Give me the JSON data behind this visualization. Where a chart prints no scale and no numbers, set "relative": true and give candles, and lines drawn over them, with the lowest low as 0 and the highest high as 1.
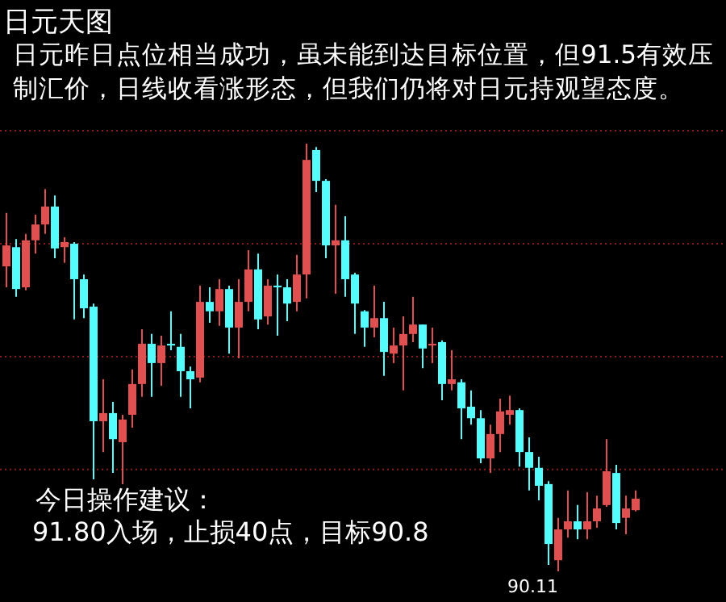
{
  "chart_data": {
    "type": "candlestick",
    "relative": true,
    "ref_lines": [
      {
        "axis": "y",
        "value": 1.03,
        "color": "#8a1c1c",
        "line_style": "dotted"
      },
      {
        "axis": "y",
        "value": 0.766,
        "color": "#8a1c1c",
        "line_style": "dotted"
      },
      {
        "axis": "y",
        "value": 0.502,
        "color": "#8a1c1c",
        "line_style": "dotted"
      },
      {
        "axis": "y",
        "value": 0.238,
        "color": "#8a1c1c",
        "line_style": "dotted"
      }
    ],
    "title": "日元天图",
    "subtitle": "日元昨日点位相当成功，虽未能到达目标位置，但91.5有效压制汇价，日线收看涨形态，但我们仍将对日元持观望态度。",
    "annotations": [
      "今日操作建议：",
      "91.80入场，止损40点，目标90.8",
      "90.11"
    ],
    "colors": [
      "#e05050",
      "#54fcfc",
      "#e05050",
      "#e05050",
      "#e05050",
      "#54fcfc",
      "#e05050",
      "#54fcfc",
      "#54fcfc",
      "#54fcfc",
      "#e05050",
      "#54fcfc",
      "#e05050",
      "#e05050",
      "#e05050",
      "#54fcfc",
      "#e05050",
      "#54fcfc",
      "#54fcfc",
      "#54fcfc",
      "#e05050",
      "#54fcfc",
      "#e05050",
      "#54fcfc",
      "#e05050",
      "#e05050",
      "#54fcfc",
      "#e05050",
      "#54fcfc",
      "#54fcfc",
      "#e05050",
      "#e05050",
      "#54fcfc",
      "#54fcfc",
      "#e05050",
      "#54fcfc",
      "#54fcfc",
      "#54fcfc",
      "#e05050",
      "#54fcfc",
      "#e05050",
      "#e05050",
      "#e05050",
      "#54fcfc",
      "#e05050",
      "#54fcfc",
      "#e05050",
      "#54fcfc",
      "#54fcfc",
      "#54fcfc",
      "#e05050",
      "#e05050",
      "#e05050",
      "#54fcfc",
      "#54fcfc",
      "#54fcfc",
      "#54fcfc",
      "#e05050",
      "#e05050",
      "#54fcfc",
      "#e05050",
      "#e05050",
      "#e05050",
      "#54fcfc",
      "#e05050",
      "#e05050"
    ],
    "categories": [
      null,
      null,
      null,
      null,
      null,
      null,
      null,
      null,
      null,
      null,
      null,
      null,
      null,
      null,
      null,
      null,
      null,
      null,
      null,
      null,
      null,
      null,
      null,
      null,
      null,
      null,
      null,
      null,
      null,
      null,
      null,
      null,
      null,
      null,
      null,
      null,
      null,
      null,
      null,
      null,
      null,
      null,
      null,
      null,
      null,
      null,
      null,
      null,
      null,
      null,
      null,
      null,
      null,
      null,
      null,
      null,
      null,
      null,
      null,
      null,
      null,
      null,
      null,
      null,
      null,
      null
    ],
    "ohlc": [
      [
        0.713,
        0.838,
        0.664,
        0.762
      ],
      [
        0.758,
        0.777,
        0.642,
        0.66
      ],
      [
        0.664,
        0.789,
        0.657,
        0.774
      ],
      [
        0.774,
        0.834,
        0.743,
        0.811
      ],
      [
        0.811,
        0.894,
        0.789,
        0.853
      ],
      [
        0.853,
        0.879,
        0.732,
        0.755
      ],
      [
        0.758,
        0.781,
        0.721,
        0.77
      ],
      [
        0.766,
        0.77,
        0.589,
        0.683
      ],
      [
        0.683,
        0.694,
        0.592,
        0.615
      ],
      [
        0.619,
        0.626,
        0.215,
        0.351
      ],
      [
        0.351,
        0.449,
        0.279,
        0.37
      ],
      [
        0.37,
        0.396,
        0.23,
        0.309
      ],
      [
        0.302,
        0.366,
        0.204,
        0.355
      ],
      [
        0.366,
        0.472,
        0.336,
        0.438
      ],
      [
        0.438,
        0.566,
        0.408,
        0.532
      ],
      [
        0.532,
        0.555,
        0.408,
        0.487
      ],
      [
        0.487,
        0.551,
        0.434,
        0.528
      ],
      [
        0.532,
        0.608,
        0.517,
        0.528
      ],
      [
        0.525,
        0.555,
        0.408,
        0.468
      ],
      [
        0.468,
        0.479,
        0.381,
        0.449
      ],
      [
        0.453,
        0.668,
        0.442,
        0.63
      ],
      [
        0.63,
        0.664,
        0.581,
        0.608
      ],
      [
        0.608,
        0.683,
        0.574,
        0.66
      ],
      [
        0.66,
        0.668,
        0.509,
        0.57
      ],
      [
        0.57,
        0.683,
        0.498,
        0.63
      ],
      [
        0.63,
        0.751,
        0.608,
        0.706
      ],
      [
        0.706,
        0.743,
        0.566,
        0.589
      ],
      [
        0.596,
        0.683,
        0.577,
        0.668
      ],
      [
        0.668,
        0.694,
        0.551,
        0.664
      ],
      [
        0.664,
        0.683,
        0.585,
        0.626
      ],
      [
        0.63,
        0.74,
        0.608,
        0.694
      ],
      [
        0.694,
        1,
        0.638,
        0.962
      ],
      [
        0.985,
        0.992,
        0.887,
        0.913
      ],
      [
        0.913,
        0.917,
        0.732,
        0.762
      ],
      [
        0.762,
        0.857,
        0.649,
        0.774
      ],
      [
        0.774,
        0.83,
        0.642,
        0.683
      ],
      [
        0.694,
        0.698,
        0.555,
        0.626
      ],
      [
        0.608,
        0.611,
        0.525,
        0.57
      ],
      [
        0.57,
        0.668,
        0.547,
        0.592
      ],
      [
        0.592,
        0.63,
        0.457,
        0.513
      ],
      [
        0.509,
        0.57,
        0.487,
        0.528
      ],
      [
        0.528,
        0.596,
        0.423,
        0.555
      ],
      [
        0.555,
        0.642,
        0.536,
        0.577
      ],
      [
        0.577,
        0.577,
        0.475,
        0.521
      ],
      [
        0.528,
        0.57,
        0.487,
        0.532
      ],
      [
        0.536,
        0.54,
        0.4,
        0.438
      ],
      [
        0.438,
        0.517,
        0.423,
        0.449
      ],
      [
        0.442,
        0.449,
        0.309,
        0.381
      ],
      [
        0.385,
        0.423,
        0.343,
        0.358
      ],
      [
        0.358,
        0.377,
        0.253,
        0.264
      ],
      [
        0.264,
        0.343,
        0.23,
        0.321
      ],
      [
        0.321,
        0.404,
        0.279,
        0.374
      ],
      [
        0.366,
        0.411,
        0.343,
        0.377
      ],
      [
        0.377,
        0.381,
        0.245,
        0.279
      ],
      [
        0.279,
        0.313,
        0.189,
        0.242
      ],
      [
        0.242,
        0.268,
        0.166,
        0.2
      ],
      [
        0.204,
        0.211,
        0.015,
        0.064
      ],
      [
        0.026,
        0.125,
        0,
        0.098
      ],
      [
        0.098,
        0.189,
        0.079,
        0.117
      ],
      [
        0.117,
        0.155,
        0.075,
        0.098
      ],
      [
        0.098,
        0.185,
        0.075,
        0.117
      ],
      [
        0.117,
        0.177,
        0.102,
        0.147
      ],
      [
        0.155,
        0.309,
        0.151,
        0.234
      ],
      [
        0.23,
        0.249,
        0.098,
        0.113
      ],
      [
        0.125,
        0.177,
        0.087,
        0.147
      ],
      [
        0.143,
        0.189,
        0.14,
        0.17
      ]
    ]
  }
}
